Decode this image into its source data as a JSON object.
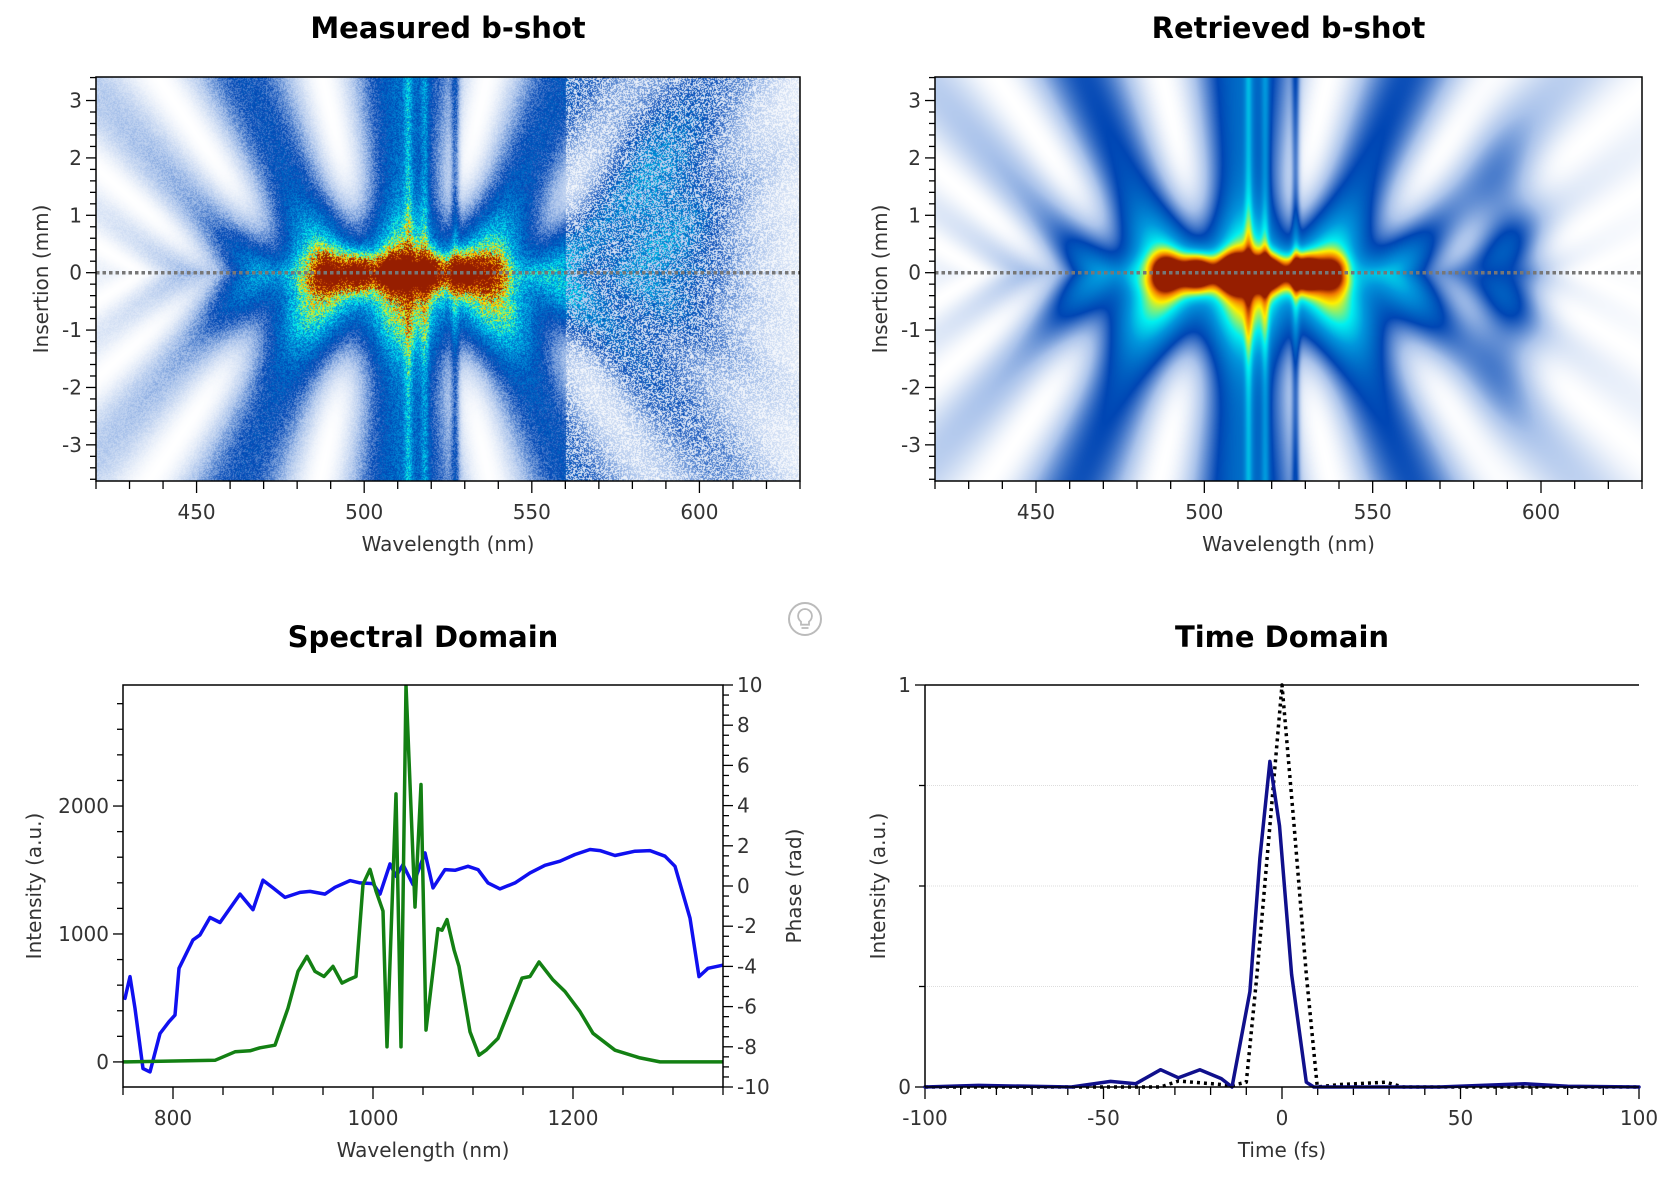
{
  "chart_data": [
    {
      "type": "heatmap",
      "title": "Measured b-shot",
      "xlabel": "Wavelength (nm)",
      "ylabel": "Insertion (mm)",
      "xlim": [
        420,
        630
      ],
      "ylim": [
        -3.63,
        3.41
      ],
      "xticks": [
        "450",
        "500",
        "550",
        "600"
      ],
      "yticks": [
        "3",
        "2",
        "1",
        "0",
        "-1",
        "-2",
        "-3"
      ],
      "reference_line_y": 0,
      "colormap": [
        "#ffffff",
        "#0046b4",
        "#00f0f0",
        "#fff000",
        "#f07800",
        "#961e00"
      ]
    },
    {
      "type": "heatmap",
      "title": "Retrieved b-shot",
      "xlabel": "Wavelength (nm)",
      "ylabel": "Insertion (mm)",
      "xlim": [
        420,
        630
      ],
      "ylim": [
        -3.63,
        3.41
      ],
      "xticks": [
        "450",
        "500",
        "550",
        "600"
      ],
      "yticks": [
        "3",
        "2",
        "1",
        "0",
        "-1",
        "-2",
        "-3"
      ],
      "reference_line_y": 0,
      "colormap": [
        "#ffffff",
        "#0046b4",
        "#00f0f0",
        "#fff000",
        "#f07800",
        "#961e00"
      ]
    },
    {
      "type": "line",
      "title": "Spectral Domain",
      "xlabel": "Wavelength (nm)",
      "ylabel": "Intensity (a.u.)",
      "y2label": "Phase (rad)",
      "xlim": [
        750,
        1350
      ],
      "ylim": [
        -196,
        2946
      ],
      "y2lim": [
        -10,
        10
      ],
      "xticks": [
        "800",
        "1000",
        "1200"
      ],
      "yticks": [
        "0",
        "1000",
        "2000"
      ],
      "y2ticks": [
        "10",
        "8",
        "6",
        "4",
        "2",
        "0",
        "-2",
        "-4",
        "-6",
        "-8",
        "-10"
      ],
      "series": [
        {
          "axis": "left",
          "color": "#1010f0",
          "x": [
            752,
            757,
            762,
            770,
            777,
            787,
            796,
            802,
            806,
            820,
            827,
            837,
            847,
            867,
            880,
            890,
            900,
            912,
            927,
            937,
            952,
            962,
            977,
            987,
            1000,
            1007,
            1017,
            1023,
            1030,
            1040,
            1052,
            1060,
            1072,
            1082,
            1095,
            1105,
            1115,
            1127,
            1142,
            1157,
            1172,
            1187,
            1202,
            1217,
            1227,
            1242,
            1262,
            1277,
            1292,
            1302,
            1317,
            1326,
            1335,
            1351
          ],
          "y": [
            497,
            667,
            418,
            -52,
            -78,
            222,
            314,
            366,
            732,
            954,
            993,
            1129,
            1090,
            1312,
            1190,
            1420,
            1360,
            1286,
            1325,
            1333,
            1312,
            1365,
            1417,
            1399,
            1394,
            1312,
            1548,
            1451,
            1542,
            1386,
            1634,
            1360,
            1503,
            1498,
            1529,
            1503,
            1399,
            1352,
            1399,
            1477,
            1537,
            1569,
            1621,
            1660,
            1652,
            1613,
            1647,
            1652,
            1608,
            1529,
            1124,
            667,
            732,
            758
          ]
        },
        {
          "axis": "right",
          "color": "#138013",
          "x": [
            750,
            842,
            862,
            877,
            887,
            902,
            915,
            925,
            934,
            942,
            951,
            960,
            969,
            977,
            983,
            990,
            997,
            1003,
            1010,
            1014,
            1023,
            1028,
            1033,
            1042,
            1048,
            1053,
            1065,
            1069,
            1074,
            1081,
            1086,
            1097,
            1106,
            1113,
            1125,
            1149,
            1157,
            1166,
            1180,
            1192,
            1207,
            1220,
            1242,
            1267,
            1287,
            1351
          ],
          "y": [
            -8.75,
            -8.67,
            -8.25,
            -8.2,
            -8.05,
            -7.92,
            -6.08,
            -4.25,
            -3.5,
            -4.25,
            -4.5,
            -4.0,
            -4.83,
            -4.63,
            -4.5,
            0.08,
            0.83,
            -0.25,
            -1.25,
            -8.0,
            4.58,
            -8.0,
            10,
            -1.05,
            5.05,
            -7.17,
            -2.12,
            -2.2,
            -1.67,
            -3.17,
            -4.0,
            -7.25,
            -8.42,
            -8.17,
            -7.58,
            -4.58,
            -4.5,
            -3.78,
            -4.67,
            -5.25,
            -6.25,
            -7.33,
            -8.17,
            -8.55,
            -8.75,
            -8.75
          ]
        }
      ]
    },
    {
      "type": "line",
      "title": "Time Domain",
      "xlabel": "Time (fs)",
      "ylabel": "Intensity (a.u.)",
      "xlim": [
        -100,
        100
      ],
      "ylim": [
        0,
        1
      ],
      "xticks": [
        "-100",
        "-50",
        "0",
        "50",
        "100"
      ],
      "yticks": [
        "0",
        "1"
      ],
      "grid_y": [
        0.25,
        0.5,
        0.75
      ],
      "series": [
        {
          "style": "solid",
          "color": "#10108c",
          "x": [
            -100,
            -85,
            -59,
            -48,
            -41,
            -34,
            -29,
            -23,
            -17,
            -14,
            -9,
            -6.2,
            -3.4,
            -0.7,
            2.7,
            6.8,
            8.9,
            44,
            68,
            80,
            100
          ],
          "y": [
            0,
            0.004,
            0,
            0.014,
            0.008,
            0.043,
            0.023,
            0.043,
            0.021,
            0,
            0.237,
            0.57,
            0.81,
            0.65,
            0.28,
            0.012,
            0,
            0,
            0.008,
            0.002,
            0
          ]
        },
        {
          "style": "dotted",
          "color": "#000000",
          "x": [
            -100,
            -34,
            -29,
            -14,
            -10,
            -7,
            -3.4,
            0,
            3.4,
            6.8,
            9.9,
            16,
            29,
            34,
            100
          ],
          "y": [
            0,
            0,
            0.015,
            0.004,
            0.012,
            0.28,
            0.65,
            1.0,
            0.65,
            0.28,
            0,
            0.006,
            0.012,
            0,
            0
          ]
        }
      ]
    }
  ],
  "icons": {
    "hint": "lightbulb-icon"
  }
}
